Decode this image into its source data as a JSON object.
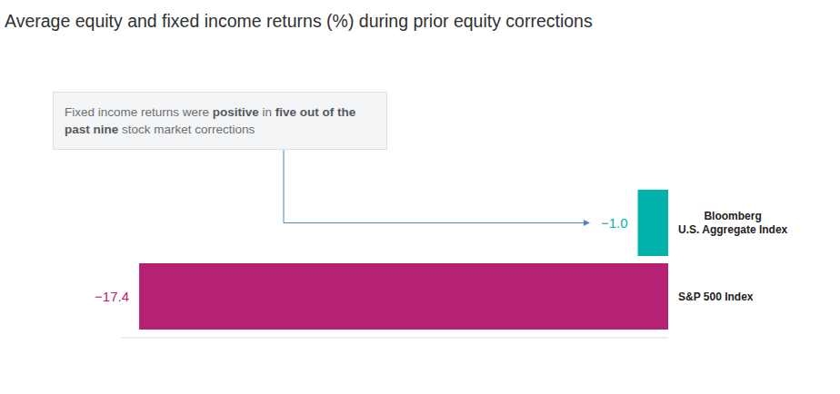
{
  "chart_data": {
    "type": "bar",
    "orientation": "horizontal",
    "title": "Average equity and fixed income returns (%) during prior equity corrections",
    "annotation": {
      "text": "Fixed income returns were positive in five out of the past nine stock market corrections",
      "bold": [
        "positive",
        "five out of the past nine"
      ]
    },
    "categories": [
      "Bloomberg U.S. Aggregate Index",
      "S&P 500 Index"
    ],
    "values": [
      -1.0,
      -17.4
    ],
    "value_labels": [
      "−1.0",
      "−17.4"
    ],
    "colors": [
      "#00b2a9",
      "#b52274"
    ],
    "xlim": [
      -18,
      0
    ],
    "grid": false,
    "tick_labels": false,
    "data_labels": true
  }
}
